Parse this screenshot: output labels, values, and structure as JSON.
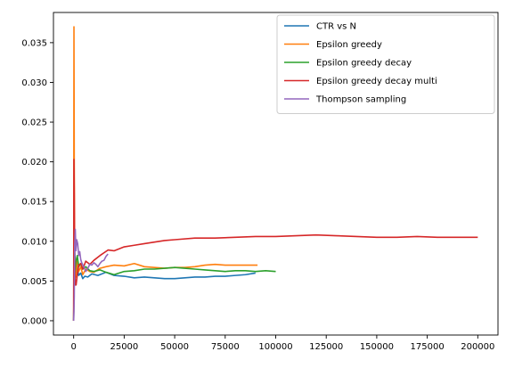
{
  "chart_data": {
    "type": "line",
    "title": "",
    "xlabel": "",
    "ylabel": "",
    "xlim": [
      -10000,
      210000
    ],
    "ylim": [
      -0.0018,
      0.0388
    ],
    "x_ticks": [
      0,
      25000,
      50000,
      75000,
      100000,
      125000,
      150000,
      175000,
      200000
    ],
    "x_tick_labels": [
      "0",
      "25000",
      "50000",
      "75000",
      "100000",
      "125000",
      "150000",
      "175000",
      "200000"
    ],
    "y_ticks": [
      0.0,
      0.005,
      0.01,
      0.015,
      0.02,
      0.025,
      0.03,
      0.035
    ],
    "y_tick_labels": [
      "0.000",
      "0.005",
      "0.010",
      "0.015",
      "0.020",
      "0.025",
      "0.030",
      "0.035"
    ],
    "grid": false,
    "legend_position": "top-right",
    "series": [
      {
        "name": "CTR vs N",
        "color": "#1f77b4",
        "x": [
          0,
          300,
          700,
          1200,
          1800,
          2500,
          3500,
          4500,
          5500,
          7000,
          9000,
          12000,
          16000,
          20000,
          25000,
          30000,
          35000,
          40000,
          45000,
          50000,
          55000,
          60000,
          65000,
          70000,
          75000,
          80000,
          85000,
          90000
        ],
        "y": [
          0.0,
          0.0095,
          0.008,
          0.0062,
          0.0068,
          0.0057,
          0.006,
          0.0053,
          0.0056,
          0.0055,
          0.0059,
          0.0057,
          0.0061,
          0.0057,
          0.0056,
          0.0054,
          0.0055,
          0.0054,
          0.0053,
          0.0053,
          0.0054,
          0.0055,
          0.0055,
          0.0056,
          0.0056,
          0.0057,
          0.0058,
          0.006
        ]
      },
      {
        "name": "Epsilon greedy",
        "color": "#ff7f0e",
        "x": [
          0,
          150,
          300,
          500,
          800,
          1200,
          1800,
          2500,
          3500,
          4500,
          6000,
          8000,
          10000,
          13000,
          16000,
          20000,
          25000,
          30000,
          35000,
          40000,
          45000,
          50000,
          55000,
          60000,
          65000,
          70000,
          75000,
          80000,
          85000,
          91000
        ],
        "y": [
          0.0,
          0.037,
          0.02,
          0.008,
          0.007,
          0.0055,
          0.0075,
          0.0062,
          0.0068,
          0.0058,
          0.0065,
          0.0062,
          0.0061,
          0.0066,
          0.0068,
          0.007,
          0.0069,
          0.0072,
          0.0068,
          0.0067,
          0.0066,
          0.0067,
          0.0067,
          0.0068,
          0.007,
          0.0071,
          0.007,
          0.007,
          0.007,
          0.007
        ]
      },
      {
        "name": "Epsilon greedy decay",
        "color": "#2ca02c",
        "x": [
          0,
          300,
          700,
          1200,
          1800,
          2500,
          3500,
          4500,
          6000,
          8000,
          10000,
          13000,
          16000,
          20000,
          25000,
          30000,
          35000,
          40000,
          45000,
          50000,
          55000,
          60000,
          65000,
          70000,
          75000,
          80000,
          85000,
          90000,
          95000,
          100000
        ],
        "y": [
          0.0,
          0.009,
          0.006,
          0.0075,
          0.0082,
          0.0068,
          0.0072,
          0.0065,
          0.0068,
          0.0063,
          0.0062,
          0.0064,
          0.0061,
          0.0058,
          0.0062,
          0.0063,
          0.0065,
          0.0065,
          0.0066,
          0.0067,
          0.0066,
          0.0065,
          0.0064,
          0.0063,
          0.0062,
          0.0063,
          0.0063,
          0.0062,
          0.0063,
          0.0062
        ]
      },
      {
        "name": "Epsilon greedy decay multi",
        "color": "#d62728",
        "x": [
          0,
          150,
          300,
          500,
          800,
          1200,
          1800,
          2500,
          3500,
          4500,
          6000,
          8000,
          10000,
          13000,
          17000,
          20000,
          25000,
          30000,
          35000,
          40000,
          45000,
          50000,
          60000,
          70000,
          80000,
          90000,
          100000,
          110000,
          120000,
          130000,
          140000,
          150000,
          160000,
          170000,
          180000,
          190000,
          200000
        ],
        "y": [
          0.0,
          0.0203,
          0.016,
          0.008,
          0.0045,
          0.0045,
          0.0058,
          0.007,
          0.0072,
          0.0065,
          0.0075,
          0.0071,
          0.0076,
          0.0082,
          0.0089,
          0.0088,
          0.0093,
          0.0095,
          0.0097,
          0.0099,
          0.0101,
          0.0102,
          0.0104,
          0.0104,
          0.0105,
          0.0106,
          0.0106,
          0.0107,
          0.0108,
          0.0107,
          0.0106,
          0.0105,
          0.0105,
          0.0106,
          0.0105,
          0.0105,
          0.0105
        ]
      },
      {
        "name": "Thompson sampling",
        "color": "#9467bd",
        "x": [
          0,
          150,
          300,
          500,
          800,
          1100,
          1500,
          2000,
          2500,
          3000,
          3500,
          4000,
          5000,
          6000,
          7000,
          8000,
          9000,
          10000,
          11000,
          12000,
          13000,
          14000,
          15000,
          16000,
          17000
        ],
        "y": [
          0.0,
          0.0012,
          0.003,
          0.0095,
          0.0115,
          0.0088,
          0.0102,
          0.0097,
          0.0082,
          0.0087,
          0.0077,
          0.0073,
          0.0068,
          0.0062,
          0.0066,
          0.0071,
          0.007,
          0.0073,
          0.0071,
          0.0068,
          0.0072,
          0.0075,
          0.0076,
          0.0081,
          0.0084
        ]
      }
    ]
  }
}
